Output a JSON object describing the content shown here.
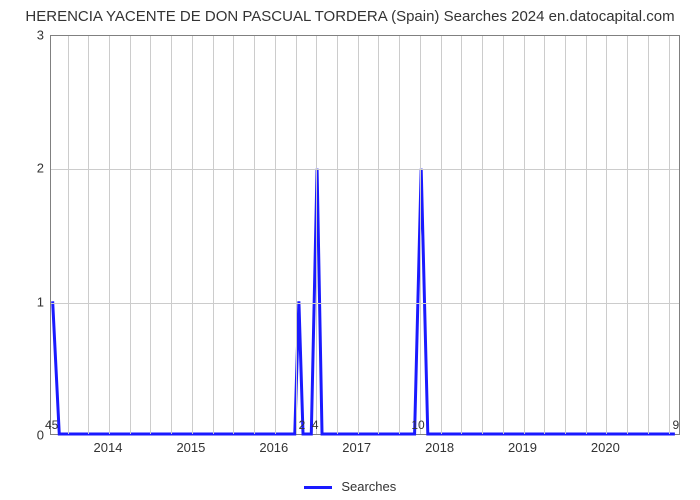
{
  "chart": {
    "type": "line",
    "title": "HERENCIA YACENTE DE DON PASCUAL TORDERA (Spain) Searches 2024 en.datocapital.com",
    "title_fontsize": 15,
    "title_color": "#333333",
    "background_color": "#ffffff",
    "grid_color": "#cccccc",
    "axis_color": "#808080",
    "line_color": "#1a1aff",
    "line_width": 3,
    "xlim": [
      2013.3,
      2020.9
    ],
    "ylim": [
      0,
      3
    ],
    "ytick_step": 1,
    "xtick_labels": [
      "2014",
      "2015",
      "2016",
      "2017",
      "2018",
      "2019",
      "2020"
    ],
    "xtick_positions": [
      2014,
      2015,
      2016,
      2017,
      2018,
      2019,
      2020
    ],
    "xtick_minor_step": 0.25,
    "spike_labels": [
      {
        "x": 2013.32,
        "text": "45"
      },
      {
        "x": 2016.34,
        "text": "2"
      },
      {
        "x": 2016.5,
        "text": "4"
      },
      {
        "x": 2017.74,
        "text": "10"
      },
      {
        "x": 2020.85,
        "text": "9"
      }
    ],
    "series_name": "Searches",
    "data_points": [
      {
        "x": 2013.32,
        "y": 1.0
      },
      {
        "x": 2013.4,
        "y": 0.0
      },
      {
        "x": 2013.5,
        "y": 0.0
      },
      {
        "x": 2014.0,
        "y": 0.0
      },
      {
        "x": 2015.0,
        "y": 0.0
      },
      {
        "x": 2016.0,
        "y": 0.0
      },
      {
        "x": 2016.25,
        "y": 0.0
      },
      {
        "x": 2016.3,
        "y": 1.0
      },
      {
        "x": 2016.35,
        "y": 0.0
      },
      {
        "x": 2016.45,
        "y": 0.0
      },
      {
        "x": 2016.52,
        "y": 2.0
      },
      {
        "x": 2016.58,
        "y": 0.0
      },
      {
        "x": 2017.0,
        "y": 0.0
      },
      {
        "x": 2017.6,
        "y": 0.0
      },
      {
        "x": 2017.7,
        "y": 0.0
      },
      {
        "x": 2017.78,
        "y": 2.0
      },
      {
        "x": 2017.86,
        "y": 0.0
      },
      {
        "x": 2018.0,
        "y": 0.0
      },
      {
        "x": 2019.0,
        "y": 0.0
      },
      {
        "x": 2020.0,
        "y": 0.0
      },
      {
        "x": 2020.85,
        "y": 0.0
      }
    ],
    "legend_label": "Searches"
  }
}
